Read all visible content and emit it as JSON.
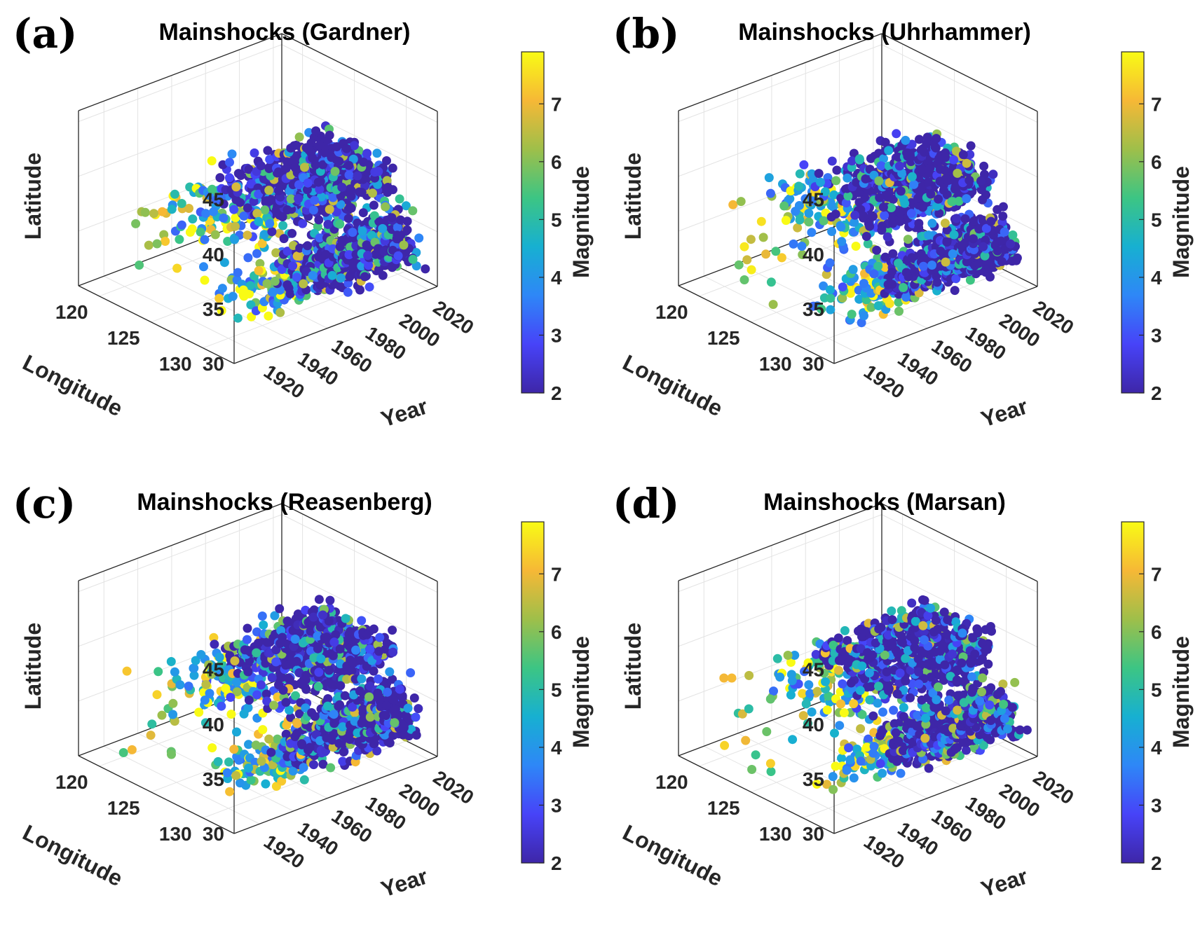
{
  "figure": {
    "colormap": [
      "#3e26a8",
      "#4743f8",
      "#2e87f7",
      "#17b0d1",
      "#3cc584",
      "#9ebf4a",
      "#f6b836",
      "#f9fb15"
    ],
    "point_colors": {
      "low": "#3e26a8",
      "high": "#f9fb15"
    }
  },
  "chart_data": [
    {
      "type": "scatter3d",
      "panel_label": "(a)",
      "title": "Mainshocks (Gardner)",
      "xlabel": "Year",
      "ylabel": "Longitude",
      "zlabel": "Latitude",
      "colorbar_label": "Magnitude",
      "x_ticks": [
        "1920",
        "1940",
        "1960",
        "1980",
        "2000",
        "2020"
      ],
      "y_ticks": [
        "120",
        "125",
        "130"
      ],
      "z_ticks": [
        "30",
        "35",
        "40",
        "45"
      ],
      "c_ticks": [
        "2",
        "3",
        "4",
        "5",
        "6",
        "7"
      ],
      "xlim": [
        1905,
        2025
      ],
      "ylim": [
        118,
        133
      ],
      "zlim": [
        30,
        46
      ],
      "clim": [
        2,
        7.9
      ],
      "seed": 11
    },
    {
      "type": "scatter3d",
      "panel_label": "(b)",
      "title": "Mainshocks (Uhrhammer)",
      "xlabel": "Year",
      "ylabel": "Longitude",
      "zlabel": "Latitude",
      "colorbar_label": "Magnitude",
      "x_ticks": [
        "1920",
        "1940",
        "1960",
        "1980",
        "2000",
        "2020"
      ],
      "y_ticks": [
        "120",
        "125",
        "130"
      ],
      "z_ticks": [
        "30",
        "35",
        "40",
        "45"
      ],
      "c_ticks": [
        "2",
        "3",
        "4",
        "5",
        "6",
        "7"
      ],
      "xlim": [
        1905,
        2025
      ],
      "ylim": [
        118,
        133
      ],
      "zlim": [
        30,
        46
      ],
      "clim": [
        2,
        7.9
      ],
      "seed": 23
    },
    {
      "type": "scatter3d",
      "panel_label": "(c)",
      "title": "Mainshocks (Reasenberg)",
      "xlabel": "Year",
      "ylabel": "Longitude",
      "zlabel": "Latitude",
      "colorbar_label": "Magnitude",
      "x_ticks": [
        "1920",
        "1940",
        "1960",
        "1980",
        "2000",
        "2020"
      ],
      "y_ticks": [
        "120",
        "125",
        "130"
      ],
      "z_ticks": [
        "30",
        "35",
        "40",
        "45"
      ],
      "c_ticks": [
        "2",
        "3",
        "4",
        "5",
        "6",
        "7"
      ],
      "xlim": [
        1905,
        2025
      ],
      "ylim": [
        118,
        133
      ],
      "zlim": [
        30,
        46
      ],
      "clim": [
        2,
        7.9
      ],
      "seed": 37
    },
    {
      "type": "scatter3d",
      "panel_label": "(d)",
      "title": "Mainshocks (Marsan)",
      "xlabel": "Year",
      "ylabel": "Longitude",
      "zlabel": "Latitude",
      "colorbar_label": "Magnitude",
      "x_ticks": [
        "1920",
        "1940",
        "1960",
        "1980",
        "2000",
        "2020"
      ],
      "y_ticks": [
        "120",
        "125",
        "130"
      ],
      "z_ticks": [
        "30",
        "35",
        "40",
        "45"
      ],
      "c_ticks": [
        "2",
        "3",
        "4",
        "5",
        "6",
        "7"
      ],
      "xlim": [
        1905,
        2025
      ],
      "ylim": [
        118,
        133
      ],
      "zlim": [
        30,
        46
      ],
      "clim": [
        2,
        7.9
      ],
      "seed": 53
    }
  ]
}
